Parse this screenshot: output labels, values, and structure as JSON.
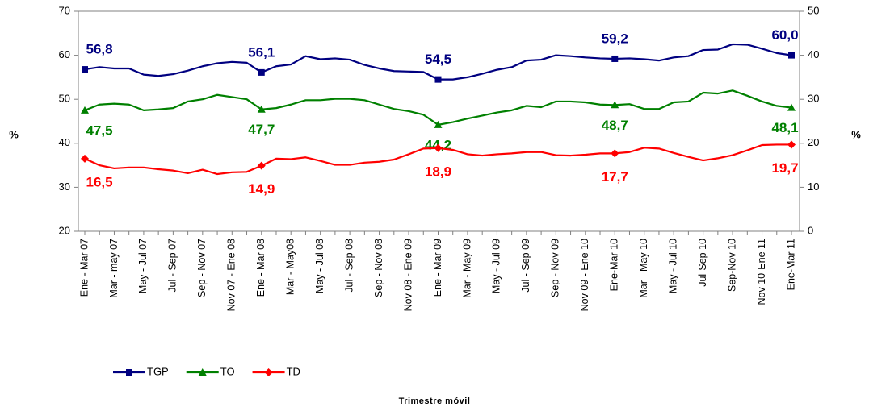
{
  "chart_data": {
    "type": "line",
    "categories": [
      "Ene - Mar 07",
      null,
      "Mar - may 07",
      null,
      "May - Jul 07",
      null,
      "Jul - Sep 07",
      null,
      "Sep - Nov 07",
      null,
      "Nov 07 - Ene 08",
      null,
      "Ene - Mar 08",
      null,
      "Mar - May08",
      null,
      "May - Jul 08",
      null,
      "Jul - Sep 08",
      null,
      "Sep - Nov 08",
      null,
      "Nov 08 - Ene 09",
      null,
      "Ene - Mar 09",
      null,
      "Mar - May 09",
      null,
      "May - Jul 09",
      null,
      "Jul - Sep 09",
      null,
      "Sep - Nov 09",
      null,
      "Nov 09 - Ene 10",
      null,
      "Ene-Mar 10",
      null,
      "Mar - May 10",
      null,
      "May - Jul 10",
      null,
      "Jul-Sep 10",
      null,
      "Sep-Nov 10",
      null,
      "Nov 10-Ene 11",
      null,
      "Ene-Mar 11"
    ],
    "series": [
      {
        "name": "TGP",
        "color": "#000080",
        "marker": "square",
        "axis": "y",
        "values": [
          56.8,
          57.3,
          57.0,
          57.0,
          55.6,
          55.3,
          55.7,
          56.5,
          57.5,
          58.2,
          58.5,
          58.3,
          56.1,
          57.5,
          57.9,
          59.8,
          59.1,
          59.3,
          59.0,
          57.8,
          57.0,
          56.4,
          56.3,
          56.2,
          54.5,
          54.5,
          55.0,
          55.8,
          56.7,
          57.3,
          58.8,
          59.0,
          60.0,
          59.8,
          59.5,
          59.3,
          59.2,
          59.3,
          59.1,
          58.8,
          59.5,
          59.8,
          61.2,
          61.3,
          62.5,
          62.4,
          61.5,
          60.5,
          60.0
        ],
        "value_labels": [
          "56,8",
          null,
          null,
          null,
          null,
          null,
          null,
          null,
          null,
          null,
          null,
          null,
          "56,1",
          null,
          null,
          null,
          null,
          null,
          null,
          null,
          null,
          null,
          null,
          null,
          "54,5",
          null,
          null,
          null,
          null,
          null,
          null,
          null,
          null,
          null,
          null,
          null,
          "59,2",
          null,
          null,
          null,
          null,
          null,
          null,
          null,
          null,
          null,
          null,
          null,
          "60,0"
        ]
      },
      {
        "name": "TO",
        "color": "#008000",
        "marker": "triangle",
        "axis": "y",
        "values": [
          47.5,
          48.8,
          49.0,
          48.8,
          47.5,
          47.7,
          48.0,
          49.5,
          50.0,
          51.0,
          50.5,
          50.0,
          47.7,
          48.0,
          48.8,
          49.8,
          49.8,
          50.1,
          50.1,
          49.8,
          48.8,
          47.8,
          47.3,
          46.5,
          44.2,
          44.8,
          45.6,
          46.3,
          47.0,
          47.5,
          48.5,
          48.2,
          49.5,
          49.5,
          49.3,
          48.8,
          48.7,
          48.9,
          47.8,
          47.8,
          49.3,
          49.5,
          51.5,
          51.3,
          52.0,
          50.8,
          49.5,
          48.5,
          48.1
        ],
        "value_labels": [
          "47,5",
          null,
          null,
          null,
          null,
          null,
          null,
          null,
          null,
          null,
          null,
          null,
          "47,7",
          null,
          null,
          null,
          null,
          null,
          null,
          null,
          null,
          null,
          null,
          null,
          "44,2",
          null,
          null,
          null,
          null,
          null,
          null,
          null,
          null,
          null,
          null,
          null,
          "48,7",
          null,
          null,
          null,
          null,
          null,
          null,
          null,
          null,
          null,
          null,
          null,
          "48,1"
        ]
      },
      {
        "name": "TD",
        "color": "#ff0000",
        "marker": "diamond",
        "axis": "y2",
        "values": [
          16.5,
          15.0,
          14.3,
          14.5,
          14.5,
          14.1,
          13.8,
          13.2,
          14.0,
          13.0,
          13.4,
          13.5,
          14.9,
          16.5,
          16.4,
          16.8,
          16.0,
          15.1,
          15.1,
          15.6,
          15.8,
          16.3,
          17.5,
          18.8,
          18.9,
          18.5,
          17.5,
          17.2,
          17.5,
          17.7,
          18.0,
          18.0,
          17.3,
          17.2,
          17.4,
          17.7,
          17.7,
          18.0,
          19.0,
          18.8,
          17.8,
          16.9,
          16.1,
          16.6,
          17.3,
          18.4,
          19.6,
          19.7,
          19.7
        ],
        "value_labels": [
          "16,5",
          null,
          null,
          null,
          null,
          null,
          null,
          null,
          null,
          null,
          null,
          null,
          "14,9",
          null,
          null,
          null,
          null,
          null,
          null,
          null,
          null,
          null,
          null,
          null,
          "18,9",
          null,
          null,
          null,
          null,
          null,
          null,
          null,
          null,
          null,
          null,
          null,
          "17,7",
          null,
          null,
          null,
          null,
          null,
          null,
          null,
          null,
          null,
          null,
          null,
          "19,7"
        ]
      }
    ],
    "ylabel": "%",
    "y2label": "%",
    "xlabel": "Trimestre móvil",
    "ylim": [
      20,
      70
    ],
    "yticks": [
      20,
      30,
      40,
      50,
      60,
      70
    ],
    "y2lim": [
      0,
      50
    ],
    "y2ticks": [
      0,
      10,
      20,
      30,
      40,
      50
    ],
    "legend": "bottom-left"
  }
}
